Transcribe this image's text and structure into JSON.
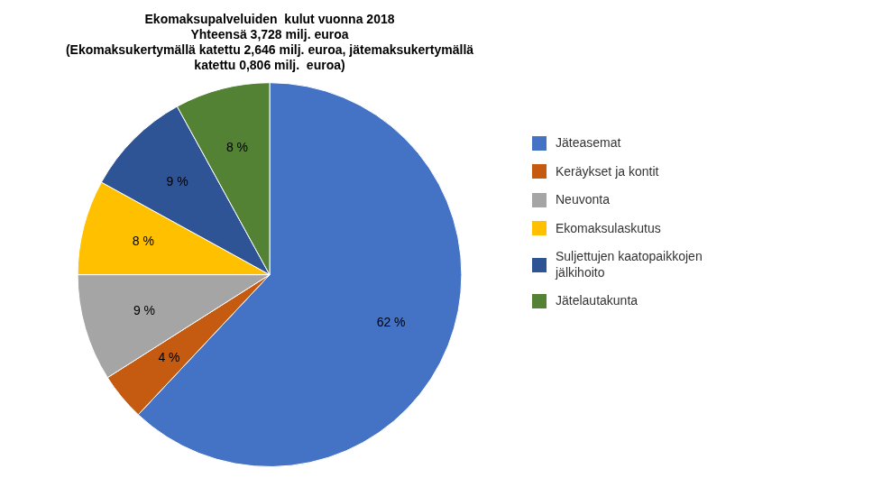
{
  "chart_data": {
    "type": "pie",
    "title": [
      "Ekomaksupalveluiden  kulut vuonna 2018",
      "Yhteensä 3,728 milj. euroa",
      "(Ekomaksukertymällä katettu 2,646 milj. euroa, jätemaksukertymällä",
      "katettu 0,806 milj.  euroa)"
    ],
    "categories": [
      "Jäteasemat",
      "Keräykset ja kontit",
      "Neuvonta",
      "Ekomaksulaskutus",
      "Suljettujen kaatopaikkojen\njälkihoito",
      "Jätelautakunta"
    ],
    "values": [
      62,
      4,
      9,
      8,
      9,
      8
    ],
    "value_labels": [
      "62 %",
      "4 %",
      "9 %",
      "8 %",
      "9 %",
      "8 %"
    ],
    "colors": [
      "#4472C4",
      "#C55A11",
      "#A5A5A5",
      "#FFC000",
      "#2F5496",
      "#548235"
    ],
    "data_labels": true,
    "legend": "right"
  }
}
